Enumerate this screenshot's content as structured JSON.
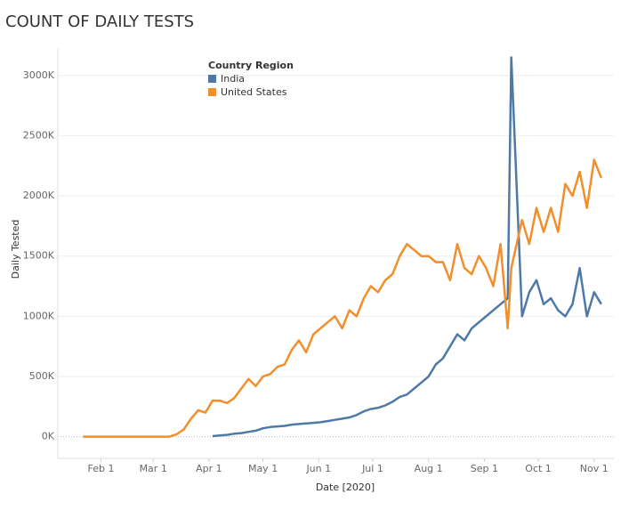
{
  "chart_data": {
    "type": "line",
    "title": "COUNT OF DAILY TESTS",
    "x_label": "Date [2020]",
    "y_label": "Daily Tested",
    "legend_title": "Country Region",
    "legend": "top-left",
    "grid": true,
    "x": [
      "2020-01-22",
      "2020-01-26",
      "2020-01-30",
      "2020-02-03",
      "2020-02-07",
      "2020-02-11",
      "2020-02-15",
      "2020-02-19",
      "2020-02-23",
      "2020-02-27",
      "2020-03-02",
      "2020-03-06",
      "2020-03-10",
      "2020-03-14",
      "2020-03-18",
      "2020-03-22",
      "2020-03-26",
      "2020-03-30",
      "2020-04-03",
      "2020-04-07",
      "2020-04-11",
      "2020-04-15",
      "2020-04-19",
      "2020-04-23",
      "2020-04-27",
      "2020-05-01",
      "2020-05-05",
      "2020-05-09",
      "2020-05-13",
      "2020-05-17",
      "2020-05-21",
      "2020-05-25",
      "2020-05-29",
      "2020-06-02",
      "2020-06-06",
      "2020-06-10",
      "2020-06-14",
      "2020-06-18",
      "2020-06-22",
      "2020-06-26",
      "2020-06-30",
      "2020-07-04",
      "2020-07-08",
      "2020-07-12",
      "2020-07-16",
      "2020-07-20",
      "2020-07-24",
      "2020-07-28",
      "2020-08-01",
      "2020-08-05",
      "2020-08-09",
      "2020-08-13",
      "2020-08-17",
      "2020-08-21",
      "2020-08-25",
      "2020-08-29",
      "2020-09-02",
      "2020-09-06",
      "2020-09-10",
      "2020-09-14",
      "2020-09-16",
      "2020-09-22",
      "2020-09-26",
      "2020-09-30",
      "2020-10-04",
      "2020-10-08",
      "2020-10-12",
      "2020-10-16",
      "2020-10-20",
      "2020-10-24",
      "2020-10-28",
      "2020-11-01",
      "2020-11-05"
    ],
    "xlim": [
      "2020-01-08",
      "2020-11-12"
    ],
    "xticks": [
      {
        "value": "2020-02-01",
        "label": "Feb 1"
      },
      {
        "value": "2020-03-01",
        "label": "Mar 1"
      },
      {
        "value": "2020-04-01",
        "label": "Apr 1"
      },
      {
        "value": "2020-05-01",
        "label": "May 1"
      },
      {
        "value": "2020-06-01",
        "label": "Jun 1"
      },
      {
        "value": "2020-07-01",
        "label": "Jul 1"
      },
      {
        "value": "2020-08-01",
        "label": "Aug 1"
      },
      {
        "value": "2020-09-01",
        "label": "Sep 1"
      },
      {
        "value": "2020-10-01",
        "label": "Oct 1"
      },
      {
        "value": "2020-11-01",
        "label": "Nov 1"
      }
    ],
    "ylim": [
      -180,
      3220
    ],
    "yticks": [
      {
        "value": 0,
        "label": "0K"
      },
      {
        "value": 500,
        "label": "500K"
      },
      {
        "value": 1000,
        "label": "1000K"
      },
      {
        "value": 1500,
        "label": "1500K"
      },
      {
        "value": 2000,
        "label": "2000K"
      },
      {
        "value": 2500,
        "label": "2500K"
      },
      {
        "value": 3000,
        "label": "3000K"
      }
    ],
    "series": [
      {
        "name": "India",
        "color": "#4e79a7",
        "values": [
          null,
          null,
          null,
          null,
          null,
          null,
          null,
          null,
          null,
          null,
          null,
          null,
          null,
          null,
          null,
          null,
          null,
          null,
          5,
          10,
          15,
          25,
          30,
          40,
          50,
          70,
          80,
          85,
          90,
          100,
          105,
          110,
          115,
          120,
          130,
          140,
          150,
          160,
          180,
          210,
          230,
          240,
          260,
          290,
          330,
          350,
          400,
          450,
          500,
          600,
          650,
          750,
          850,
          800,
          900,
          950,
          1000,
          1050,
          1100,
          1150,
          3150,
          1000,
          1200,
          1300,
          1100,
          1150,
          1050,
          1000,
          1100,
          1400,
          1000,
          1200,
          1100
        ]
      },
      {
        "name": "United States",
        "color": "#f28e2b",
        "values": [
          0,
          0,
          0,
          0,
          0,
          0,
          0,
          0,
          0,
          0,
          0,
          0,
          0,
          20,
          60,
          150,
          220,
          200,
          300,
          300,
          280,
          320,
          400,
          480,
          420,
          500,
          520,
          580,
          600,
          720,
          800,
          700,
          850,
          900,
          950,
          1000,
          900,
          1050,
          1000,
          1150,
          1250,
          1200,
          1300,
          1350,
          1500,
          1600,
          1550,
          1500,
          1500,
          1450,
          1450,
          1300,
          1600,
          1400,
          1350,
          1500,
          1400,
          1250,
          1600,
          900,
          1400,
          1800,
          1600,
          1900,
          1700,
          1900,
          1700,
          2100,
          2000,
          2200,
          1900,
          2300,
          2150
        ]
      }
    ]
  }
}
